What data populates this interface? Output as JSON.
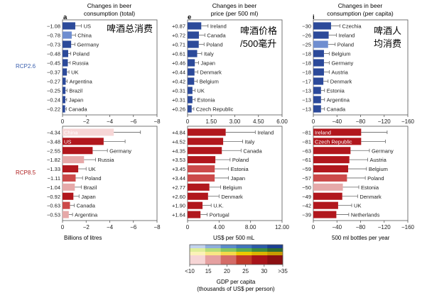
{
  "panels": [
    {
      "letter": "a",
      "title_lines": [
        "Changes in beer",
        "consumption (total)"
      ],
      "annotation": [
        "啤酒总消费"
      ],
      "xlabel": "Billions of litres",
      "ticks": [
        "0",
        "−2",
        "−4",
        "−6",
        "−8"
      ]
    },
    {
      "letter": "e",
      "title_lines": [
        "Changes in beer",
        "price (per 500 ml)"
      ],
      "annotation": [
        "啤酒价格",
        "/500毫升"
      ],
      "xlabel": "US$ per 500 mL",
      "ticks_top": [
        "0",
        "1.50",
        "3.00",
        "4.50",
        "6.00"
      ],
      "ticks_bottom": [
        "0",
        "4.00",
        "8.00",
        "12.00"
      ]
    },
    {
      "letter": "i",
      "title_lines": [
        "Changes in beer",
        "consumption (per capita)"
      ],
      "annotation": [
        "啤酒人",
        "均消费"
      ],
      "xlabel": "500 ml bottles per year",
      "ticks": [
        "0",
        "−40",
        "−80",
        "−120",
        "−160"
      ]
    }
  ],
  "row_labels": {
    "top": "RCP2.6",
    "bottom": "RCP8.5"
  },
  "colorbar": {
    "label_lines": [
      "GDP per capita",
      "(thousands of US$ per person)"
    ],
    "ticks": [
      "<10",
      "15",
      "20",
      "25",
      "30",
      ">35"
    ],
    "blue_colors": [
      "#1b3f93",
      "#2b5aa8",
      "#3f74bc",
      "#5b8ccb",
      "#8eaedb",
      "#c2d3ec"
    ],
    "green_colors": [
      "#2f6b2f",
      "#3d8a3d",
      "#5cab4f",
      "#86c65f",
      "#b4dc7a",
      "#dfee9a"
    ],
    "yellow_colors": [
      "#c89a00",
      "#dbb300",
      "#ecc800",
      "#f4d94a",
      "#f8e784",
      "#fbf2b8"
    ],
    "red_colors": [
      "#8b0f12",
      "#a8141a",
      "#c0392b",
      "#d46b67",
      "#e5a0a0",
      "#f6d5d5"
    ]
  },
  "colors": {
    "rcp26": "#2c4a9a",
    "rcp26_light": "#6f8ed0",
    "rcp85": "#b1171d",
    "rcp85_mid": "#cc4a4a",
    "rcp85_light": "#e6a9a9",
    "rcp85_pale": "#f6d6d6",
    "row_label_blue": "#3a5fae",
    "row_label_red": "#b02020"
  },
  "chart_data": [
    {
      "type": "bar",
      "title": "Changes in beer consumption (total)",
      "panel": "a",
      "scenario": "RCP2.6",
      "categories": [
        "US",
        "China",
        "Germany",
        "Poland",
        "Russia",
        "UK",
        "Argentina",
        "Brazil",
        "Japan",
        "Canada"
      ],
      "values": [
        -1.08,
        -0.78,
        -0.73,
        -0.48,
        -0.45,
        -0.37,
        -0.27,
        -0.25,
        -0.24,
        -0.22
      ],
      "labels": [
        "−1.08",
        "−0.78",
        "−0.73",
        "−0.48",
        "−0.45",
        "−0.37",
        "−0.27",
        "−0.25",
        "−0.24",
        "−0.22"
      ],
      "error_upper": [
        -1.6,
        -1.1,
        -1.05,
        -0.7,
        -0.65,
        -0.55,
        -0.4,
        -0.38,
        -0.35,
        -0.32
      ],
      "shade": [
        "dark",
        "light",
        "dark",
        "dark",
        "dark",
        "dark",
        "dark",
        "dark",
        "dark",
        "dark"
      ],
      "xlim": [
        0,
        -8
      ],
      "xlabel": "Billions of litres"
    },
    {
      "type": "bar",
      "panel": "a",
      "scenario": "RCP8.5",
      "categories": [
        "China",
        "US",
        "Germany",
        "Russia",
        "UK",
        "Poland",
        "Brazil",
        "Japan",
        "Canada",
        "Argentina"
      ],
      "values": [
        -4.34,
        -3.48,
        -2.55,
        -1.82,
        -1.33,
        -1.11,
        -1.04,
        -0.92,
        -0.63,
        -0.53
      ],
      "labels": [
        "−4.34",
        "−3.48",
        "−2.55",
        "−1.82",
        "−1.33",
        "−1.11",
        "−1.04",
        "−0.92",
        "−0.63",
        "−0.53"
      ],
      "error_upper": [
        -6.6,
        -5.3,
        -3.8,
        -2.8,
        -2.0,
        -1.7,
        -1.6,
        -1.4,
        -1.0,
        -0.85
      ],
      "shade": [
        "pale",
        "dark",
        "dark",
        "light",
        "dark",
        "mid",
        "light",
        "dark",
        "mid",
        "light"
      ],
      "label_inside": [
        true,
        true,
        false,
        false,
        false,
        false,
        false,
        false,
        false,
        false
      ],
      "xlim": [
        0,
        -8
      ],
      "xlabel": "Billions of litres"
    },
    {
      "type": "bar",
      "title": "Changes in beer price (per 500 ml)",
      "panel": "e",
      "scenario": "RCP2.6",
      "categories": [
        "Ireland",
        "Canada",
        "Poland",
        "Italy",
        "Japan",
        "Denmark",
        "Belgium",
        "UK",
        "Estonia",
        "Czech Republic"
      ],
      "values": [
        0.87,
        0.72,
        0.71,
        0.61,
        0.46,
        0.44,
        0.42,
        0.31,
        0.31,
        0.26
      ],
      "labels": [
        "+0.87",
        "+0.72",
        "+0.71",
        "+0.61",
        "+0.46",
        "+0.44",
        "+0.42",
        "+0.31",
        "+0.31",
        "+0.26"
      ],
      "error_upper": [
        1.3,
        1.1,
        1.05,
        0.9,
        0.7,
        0.65,
        0.62,
        0.47,
        0.47,
        0.4
      ],
      "shade": [
        "dark",
        "dark",
        "dark",
        "dark",
        "dark",
        "dark",
        "dark",
        "dark",
        "dark",
        "dark"
      ],
      "xlim": [
        0,
        6
      ],
      "xlabel": "US$ per 500 mL"
    },
    {
      "type": "bar",
      "panel": "e",
      "scenario": "RCP8.5",
      "categories": [
        "Ireland",
        "Italy",
        "Canada",
        "Poland",
        "Estonia",
        "Japan",
        "Belgium",
        "Denmark",
        "U.K.",
        "Portugal"
      ],
      "values": [
        4.84,
        4.52,
        4.35,
        3.53,
        3.45,
        3.44,
        2.77,
        2.6,
        1.9,
        1.64
      ],
      "labels": [
        "+4.84",
        "+4.52",
        "+4.35",
        "+3.53",
        "+3.45",
        "+3.44",
        "+2.77",
        "+2.60",
        "+1.90",
        "+1.64"
      ],
      "error_upper": [
        8.6,
        7.0,
        6.8,
        5.4,
        5.2,
        5.2,
        4.2,
        4.0,
        3.0,
        2.5
      ],
      "shade": [
        "dark",
        "dark",
        "dark",
        "dark",
        "mid",
        "mid",
        "dark",
        "dark",
        "dark",
        "dark"
      ],
      "xlim": [
        0,
        12
      ],
      "xlabel": "US$ per 500 mL"
    },
    {
      "type": "bar",
      "title": "Changes in beer consumption (per capita)",
      "panel": "i",
      "scenario": "RCP2.6",
      "categories": [
        "Czechia",
        "Ireland",
        "Poland",
        "Belgium",
        "Germany",
        "Austria",
        "Denmark",
        "Estonia",
        "Argentina",
        "Canada"
      ],
      "values": [
        -30,
        -26,
        -25,
        -18,
        -18,
        -18,
        -17,
        -13,
        -13,
        -13
      ],
      "labels": [
        "−30",
        "−26",
        "−25",
        "−18",
        "−18",
        "−18",
        "−17",
        "−13",
        "−13",
        "−13"
      ],
      "error_upper": [
        -45,
        -39,
        -37,
        -27,
        -27,
        -27,
        -25,
        -19,
        -19,
        -19
      ],
      "shade": [
        "dark",
        "dark",
        "light",
        "dark",
        "dark",
        "dark",
        "dark",
        "dark",
        "dark",
        "dark"
      ],
      "xlim": [
        0,
        -160
      ],
      "xlabel": "500 ml bottles per year"
    },
    {
      "type": "bar",
      "panel": "i",
      "scenario": "RCP8.5",
      "categories": [
        "Ireland",
        "Czech Republic",
        "Germany",
        "Austria",
        "Belgium",
        "Poland",
        "Estonia",
        "Denmark",
        "UK",
        "Netherlands"
      ],
      "values": [
        -81,
        -81,
        -63,
        -61,
        -59,
        -57,
        -50,
        -49,
        -42,
        -39
      ],
      "labels": [
        "−81",
        "−81",
        "−63",
        "−61",
        "−59",
        "−57",
        "−50",
        "−49",
        "−42",
        "−39"
      ],
      "error_upper": [
        -125,
        -122,
        -95,
        -92,
        -90,
        -88,
        -77,
        -75,
        -65,
        -60
      ],
      "shade": [
        "dark",
        "dark",
        "dark",
        "dark",
        "dark",
        "mid",
        "light",
        "dark",
        "dark",
        "dark"
      ],
      "label_inside": [
        true,
        true,
        false,
        false,
        false,
        false,
        false,
        false,
        false,
        false
      ],
      "xlim": [
        0,
        -160
      ],
      "xlabel": "500 ml bottles per year"
    }
  ]
}
